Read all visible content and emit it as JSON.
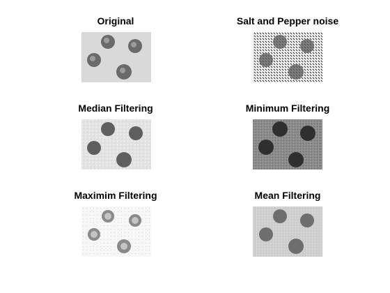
{
  "figure": {
    "panels": [
      {
        "title": "Original",
        "variant": "original"
      },
      {
        "title": "Salt and Pepper noise",
        "variant": "saltpepper"
      },
      {
        "title": "Median Filtering",
        "variant": "median"
      },
      {
        "title": "Minimum Filtering",
        "variant": "minimum"
      },
      {
        "title": "Maximim Filtering",
        "variant": "maximum"
      },
      {
        "title": "Mean Filtering",
        "variant": "mean"
      }
    ]
  }
}
